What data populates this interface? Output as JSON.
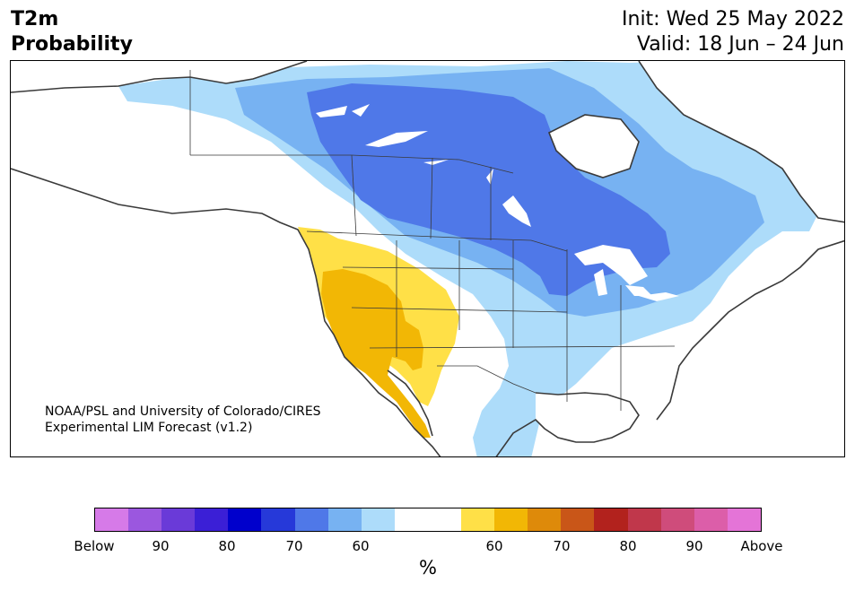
{
  "header": {
    "variable": "T2m",
    "metric": "Probability",
    "init": "Init: Wed 25 May 2022",
    "valid": "Valid: 18 Jun – 24 Jun"
  },
  "credit": {
    "line1": "NOAA/PSL and University of Colorado/CIRES",
    "line2": "Experimental LIM Forecast (v1.2)"
  },
  "colorbar": {
    "colors": [
      "#d67ae8",
      "#9b57df",
      "#6a3ad8",
      "#3b1fd6",
      "#0000cc",
      "#2639d9",
      "#4f78e8",
      "#77b2f2",
      "#addcfa",
      "#ffffff",
      "#ffffff",
      "#ffe047",
      "#f2b705",
      "#de8a0a",
      "#c95618",
      "#b2221d",
      "#c0374b",
      "#cf4c7b",
      "#dc5ea9",
      "#e474d7"
    ],
    "labels": [
      "Below",
      "90",
      "80",
      "70",
      "60",
      "60",
      "70",
      "80",
      "90",
      "Above"
    ],
    "units": "%"
  },
  "map": {
    "colors": {
      "land": "#ffffff",
      "coast": "#3a3a3a",
      "below_60": "#addcfa",
      "below_65": "#77b2f2",
      "below_70": "#4f78e8",
      "above_60": "#ffe047",
      "above_65": "#f2b705"
    }
  }
}
